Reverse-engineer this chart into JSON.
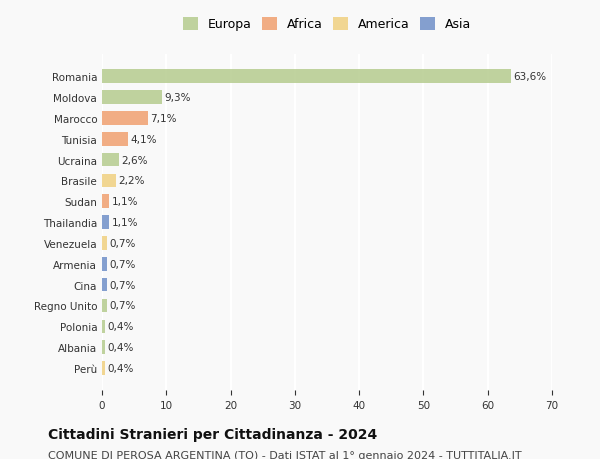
{
  "categories": [
    "Romania",
    "Moldova",
    "Marocco",
    "Tunisia",
    "Ucraina",
    "Brasile",
    "Sudan",
    "Thailandia",
    "Venezuela",
    "Armenia",
    "Cina",
    "Regno Unito",
    "Polonia",
    "Albania",
    "Perù"
  ],
  "values": [
    63.6,
    9.3,
    7.1,
    4.1,
    2.6,
    2.2,
    1.1,
    1.1,
    0.7,
    0.7,
    0.7,
    0.7,
    0.4,
    0.4,
    0.4
  ],
  "labels": [
    "63,6%",
    "9,3%",
    "7,1%",
    "4,1%",
    "2,6%",
    "2,2%",
    "1,1%",
    "1,1%",
    "0,7%",
    "0,7%",
    "0,7%",
    "0,7%",
    "0,4%",
    "0,4%",
    "0,4%"
  ],
  "continents": [
    "Europa",
    "Europa",
    "Africa",
    "Africa",
    "Europa",
    "America",
    "Africa",
    "Asia",
    "America",
    "Asia",
    "Asia",
    "Europa",
    "Europa",
    "Europa",
    "America"
  ],
  "continent_colors": {
    "Europa": "#b5cc8e",
    "Africa": "#f0a070",
    "America": "#f0d080",
    "Asia": "#7090c8"
  },
  "legend_colors": {
    "Europa": "#b5cc8e",
    "Africa": "#f0a070",
    "America": "#f0d080",
    "Asia": "#7090c8"
  },
  "xlim": [
    0,
    70
  ],
  "xticks": [
    0,
    10,
    20,
    30,
    40,
    50,
    60,
    70
  ],
  "title": "Cittadini Stranieri per Cittadinanza - 2024",
  "subtitle": "COMUNE DI PEROSA ARGENTINA (TO) - Dati ISTAT al 1° gennaio 2024 - TUTTITALIA.IT",
  "background_color": "#f9f9f9",
  "grid_color": "#ffffff",
  "bar_alpha": 0.85,
  "title_fontsize": 10,
  "subtitle_fontsize": 8,
  "label_fontsize": 7.5,
  "tick_fontsize": 7.5,
  "legend_fontsize": 9
}
